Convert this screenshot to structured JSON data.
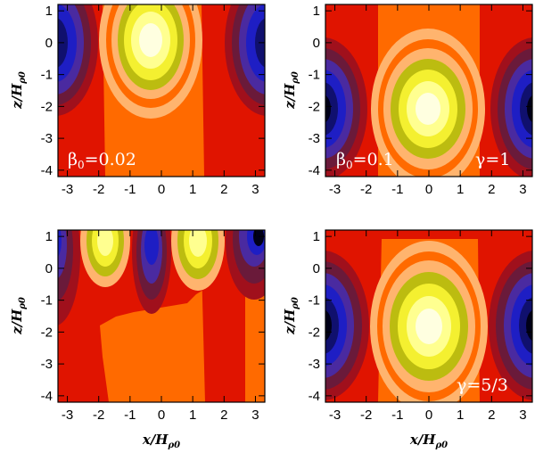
{
  "figure": {
    "panels": [
      {
        "id": "top-left",
        "annotations": [
          {
            "symbol": "β",
            "sub": "0",
            "text": "=0.02",
            "pos": "bottom-left"
          }
        ],
        "xlabel_main": "",
        "xlabel_sub": "",
        "ylabel_main": "z/H",
        "ylabel_sub": "ρ0"
      },
      {
        "id": "top-right",
        "annotations": [
          {
            "symbol": "β",
            "sub": "0",
            "text": "=0.1",
            "pos": "bottom-left"
          },
          {
            "symbol": "γ",
            "sub": "",
            "text": "=1",
            "pos": "bottom-right"
          }
        ],
        "xlabel_main": "",
        "xlabel_sub": "",
        "ylabel_main": "z/H",
        "ylabel_sub": "ρ0"
      },
      {
        "id": "bottom-left",
        "annotations": [],
        "xlabel_main": "x/H",
        "xlabel_sub": "ρ0",
        "ylabel_main": "z/H",
        "ylabel_sub": "ρ0"
      },
      {
        "id": "bottom-right",
        "annotations": [
          {
            "symbol": "γ",
            "sub": "",
            "text": "=5/3",
            "pos": "bottom-right"
          }
        ],
        "xlabel_main": "x/H",
        "xlabel_sub": "ρ0",
        "ylabel_main": "z/H",
        "ylabel_sub": "ρ0"
      }
    ],
    "x_ticks": [
      "-3",
      "-2",
      "-1",
      "0",
      "1",
      "2",
      "3"
    ],
    "y_ticks": [
      "1",
      "0",
      "-1",
      "-2",
      "-3",
      "-4"
    ]
  },
  "chart_data": [
    {
      "type": "heatmap",
      "panel": "top-left",
      "xlim": [
        -3.3,
        3.3
      ],
      "ylim": [
        -4.2,
        1.2
      ],
      "features": [
        {
          "kind": "max",
          "x": -0.2,
          "z": 0.0
        },
        {
          "kind": "min",
          "x": -3.3,
          "z": 0.0
        },
        {
          "kind": "min",
          "x": 3.3,
          "z": 0.0
        }
      ]
    },
    {
      "type": "heatmap",
      "panel": "top-right",
      "xlim": [
        -3.3,
        3.3
      ],
      "ylim": [
        -4.2,
        1.2
      ],
      "features": [
        {
          "kind": "max",
          "x": 0.0,
          "z": -2.0
        },
        {
          "kind": "min",
          "x": -3.3,
          "z": -2.0
        },
        {
          "kind": "min",
          "x": 3.3,
          "z": -2.0
        }
      ]
    },
    {
      "type": "heatmap",
      "panel": "bottom-left",
      "xlim": [
        -3.3,
        3.3
      ],
      "ylim": [
        -4.2,
        1.2
      ],
      "features": [
        {
          "kind": "max",
          "x": -1.8,
          "z": 0.8
        },
        {
          "kind": "max",
          "x": 1.1,
          "z": 0.8
        },
        {
          "kind": "min",
          "x": -0.4,
          "z": 0.9
        },
        {
          "kind": "min",
          "x": 3.0,
          "z": 1.0
        }
      ]
    },
    {
      "type": "heatmap",
      "panel": "bottom-right",
      "xlim": [
        -3.3,
        3.3
      ],
      "ylim": [
        -4.2,
        1.2
      ],
      "features": [
        {
          "kind": "max",
          "x": 0.0,
          "z": -1.6
        },
        {
          "kind": "min",
          "x": -3.3,
          "z": -1.6
        },
        {
          "kind": "min",
          "x": 3.3,
          "z": -1.6
        }
      ]
    }
  ],
  "colors": {
    "levels": [
      "#000018",
      "#10106e",
      "#1e1ec4",
      "#4a2aa0",
      "#6a1a3a",
      "#a0101c",
      "#e01400",
      "#ff6a00",
      "#ffb46e",
      "#bcbc10",
      "#f4f030",
      "#ffff90",
      "#ffffe0"
    ]
  }
}
